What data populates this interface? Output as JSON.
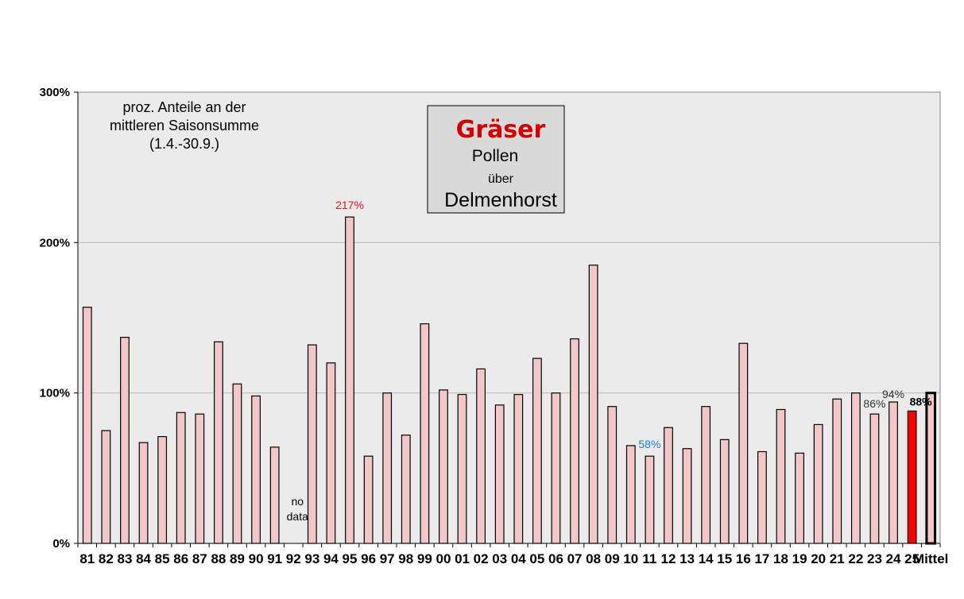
{
  "chart_data": {
    "type": "bar",
    "title_box": {
      "line1": "Gräser",
      "line2": "Pollen",
      "line3": "über",
      "line4": "Delmenhorst"
    },
    "note": [
      "proz. Anteile an der",
      "mittleren Saisonsumme",
      "(1.4.-30.9.)"
    ],
    "y_ticks": [
      "0%",
      "100%",
      "200%",
      "300%"
    ],
    "ylim": [
      0,
      300
    ],
    "grid": true,
    "categories": [
      "81",
      "82",
      "83",
      "84",
      "85",
      "86",
      "87",
      "88",
      "89",
      "90",
      "91",
      "92",
      "93",
      "94",
      "95",
      "96",
      "97",
      "98",
      "99",
      "00",
      "01",
      "02",
      "03",
      "04",
      "05",
      "06",
      "07",
      "08",
      "09",
      "10",
      "11",
      "12",
      "13",
      "14",
      "15",
      "16",
      "17",
      "18",
      "19",
      "20",
      "21",
      "22",
      "23",
      "24",
      "25",
      "Mittel"
    ],
    "values": [
      157,
      75,
      137,
      67,
      71,
      87,
      86,
      134,
      106,
      98,
      64,
      null,
      132,
      120,
      217,
      58,
      100,
      72,
      146,
      102,
      99,
      116,
      92,
      99,
      123,
      100,
      136,
      185,
      91,
      65,
      58,
      77,
      63,
      91,
      69,
      133,
      61,
      89,
      60,
      79,
      96,
      100,
      86,
      94,
      88,
      100
    ],
    "no_data_label": [
      "no",
      "data"
    ],
    "data_labels": [
      {
        "category": "95",
        "text": "217%",
        "color": "#e8101a"
      },
      {
        "category": "11",
        "text": "58%",
        "color": "#1f7fc0"
      },
      {
        "category": "23",
        "text": "86%",
        "color": "#333333"
      },
      {
        "category": "24",
        "text": "94%",
        "color": "#333333"
      },
      {
        "category": "25",
        "text": "88%",
        "color": "#000000"
      }
    ],
    "colors": {
      "bar_fill": "#f2c7c7",
      "highlight_fill": "#ff0000",
      "mean_fill": "#f2c7c7",
      "plot_bg": "#ebebeb"
    },
    "highlight_category": "25"
  }
}
